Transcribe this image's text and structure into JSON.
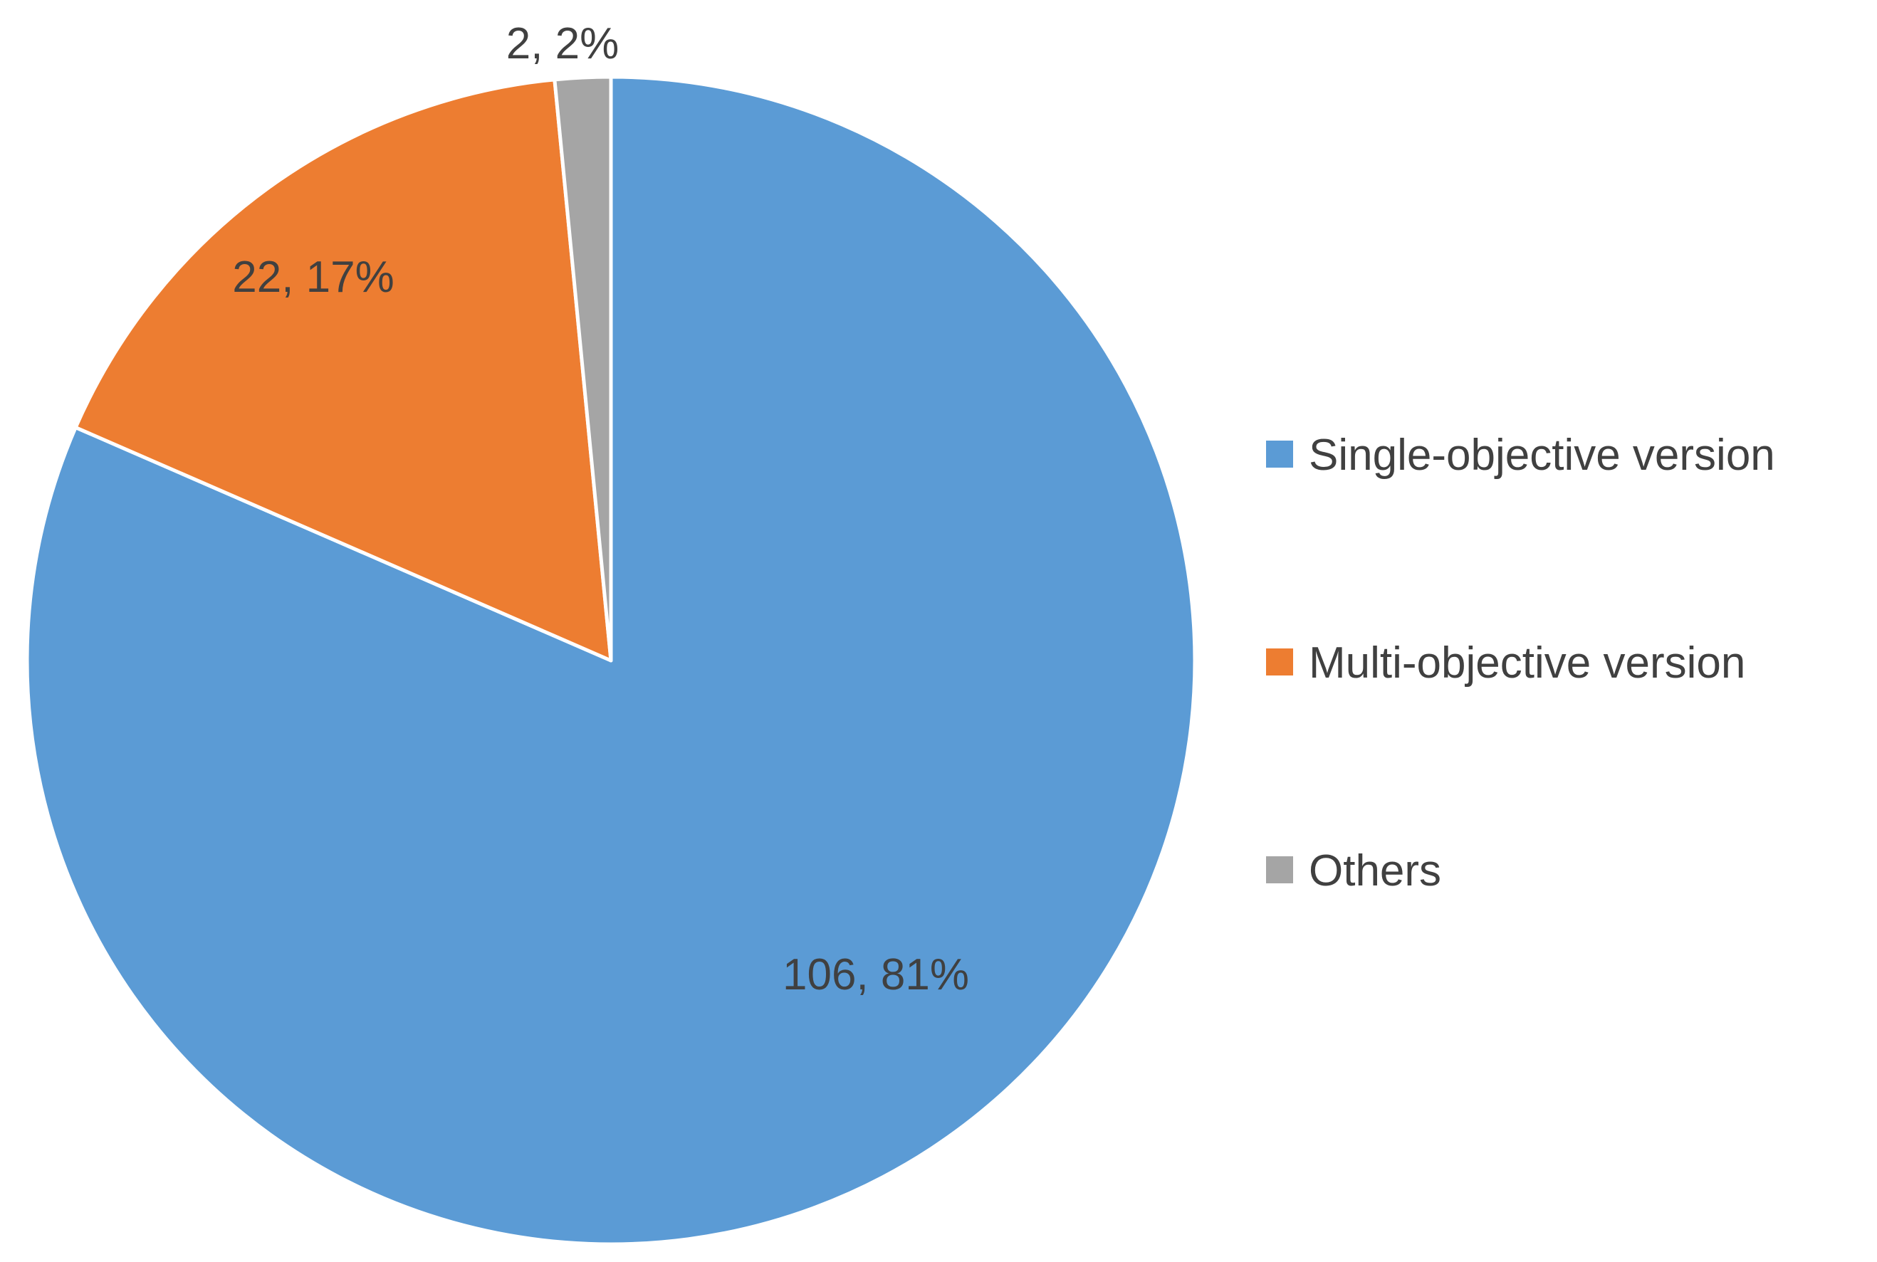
{
  "chart_data": {
    "type": "pie",
    "title": "",
    "start_angle_deg": 0,
    "direction": "clockwise",
    "slice_border_color": "#ffffff",
    "legend_position": "right",
    "slices": [
      {
        "name": "Single-objective version",
        "value": 106,
        "percent": 81,
        "label": "106, 81%",
        "color": "#5B9BD5"
      },
      {
        "name": "Multi-objective version",
        "value": 22,
        "percent": 17,
        "label": "22, 17%",
        "color": "#ED7D31"
      },
      {
        "name": "Others",
        "value": 2,
        "percent": 2,
        "label": "2, 2%",
        "color": "#A5A5A5"
      }
    ]
  }
}
